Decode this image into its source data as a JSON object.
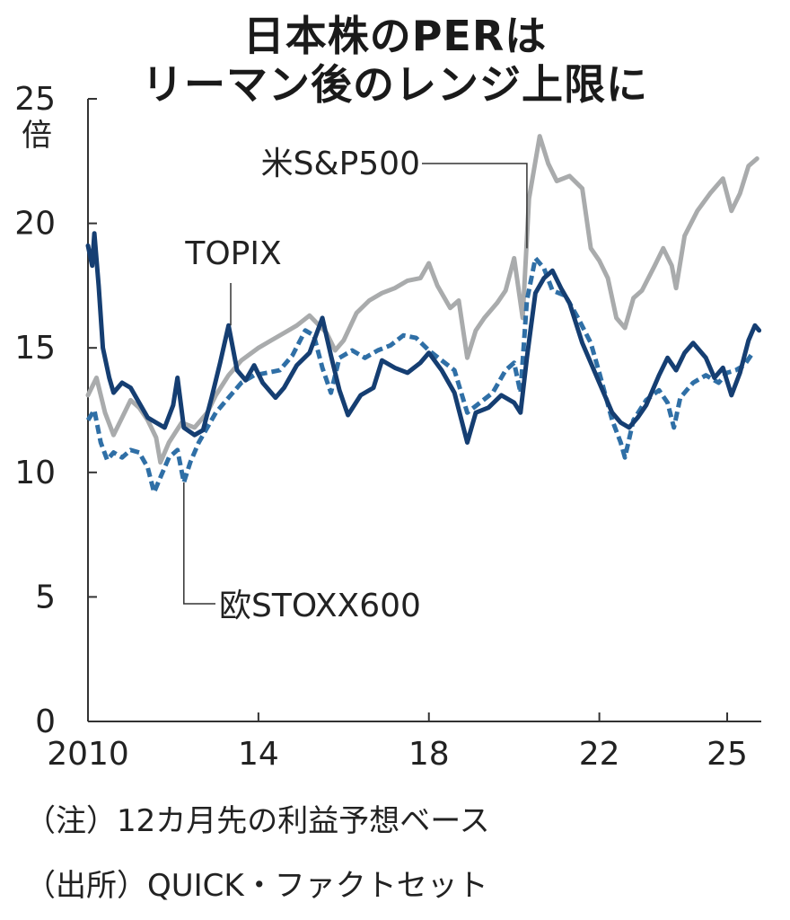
{
  "title": [
    "日本株のPERは",
    "リーマン後のレンジ上限に"
  ],
  "notes": [
    "（注）12カ月先の利益予想ベース",
    "（出所）QUICK・ファクトセット"
  ],
  "chart_data": {
    "type": "line",
    "title": "日本株のPERはリーマン後のレンジ上限に",
    "ylabel": "倍",
    "xlabel": "",
    "ylim": [
      0,
      25
    ],
    "xlim": [
      2010,
      2025.8
    ],
    "yticks": [
      0,
      5,
      10,
      15,
      20,
      25
    ],
    "ytick_labels": [
      "0",
      "5",
      "10",
      "15",
      "20",
      "25"
    ],
    "xticks": [
      2010,
      2014,
      2018,
      2022,
      2025
    ],
    "xtick_labels": [
      "2010",
      "14",
      "18",
      "22",
      "25"
    ],
    "series": [
      {
        "name": "米S&P500",
        "color": "#a9abac",
        "style": "solid",
        "points": [
          [
            2010.0,
            13.1
          ],
          [
            2010.2,
            13.8
          ],
          [
            2010.4,
            12.4
          ],
          [
            2010.6,
            11.5
          ],
          [
            2010.8,
            12.2
          ],
          [
            2011.0,
            12.9
          ],
          [
            2011.2,
            12.6
          ],
          [
            2011.4,
            12.1
          ],
          [
            2011.6,
            11.4
          ],
          [
            2011.7,
            10.4
          ],
          [
            2011.9,
            11.2
          ],
          [
            2012.2,
            12.0
          ],
          [
            2012.5,
            11.8
          ],
          [
            2012.8,
            12.4
          ],
          [
            2013.0,
            13.1
          ],
          [
            2013.3,
            13.9
          ],
          [
            2013.6,
            14.5
          ],
          [
            2014.0,
            15.0
          ],
          [
            2014.3,
            15.3
          ],
          [
            2014.6,
            15.6
          ],
          [
            2014.9,
            15.9
          ],
          [
            2015.2,
            16.3
          ],
          [
            2015.6,
            15.6
          ],
          [
            2015.8,
            14.9
          ],
          [
            2016.0,
            15.3
          ],
          [
            2016.3,
            16.4
          ],
          [
            2016.6,
            16.9
          ],
          [
            2016.9,
            17.2
          ],
          [
            2017.2,
            17.4
          ],
          [
            2017.5,
            17.7
          ],
          [
            2017.8,
            17.8
          ],
          [
            2018.0,
            18.4
          ],
          [
            2018.2,
            17.5
          ],
          [
            2018.5,
            16.6
          ],
          [
            2018.7,
            16.9
          ],
          [
            2018.9,
            14.6
          ],
          [
            2019.1,
            15.7
          ],
          [
            2019.3,
            16.2
          ],
          [
            2019.6,
            16.8
          ],
          [
            2019.8,
            17.3
          ],
          [
            2020.0,
            18.6
          ],
          [
            2020.2,
            16.2
          ],
          [
            2020.35,
            21.0
          ],
          [
            2020.6,
            23.5
          ],
          [
            2020.8,
            22.4
          ],
          [
            2021.0,
            21.7
          ],
          [
            2021.3,
            21.9
          ],
          [
            2021.6,
            21.4
          ],
          [
            2021.8,
            19.0
          ],
          [
            2022.0,
            18.5
          ],
          [
            2022.2,
            17.8
          ],
          [
            2022.4,
            16.2
          ],
          [
            2022.6,
            15.8
          ],
          [
            2022.8,
            17.0
          ],
          [
            2023.0,
            17.3
          ],
          [
            2023.3,
            18.3
          ],
          [
            2023.5,
            19.0
          ],
          [
            2023.7,
            18.3
          ],
          [
            2023.8,
            17.4
          ],
          [
            2024.0,
            19.5
          ],
          [
            2024.3,
            20.5
          ],
          [
            2024.6,
            21.2
          ],
          [
            2024.9,
            21.8
          ],
          [
            2025.1,
            20.5
          ],
          [
            2025.3,
            21.2
          ],
          [
            2025.5,
            22.3
          ],
          [
            2025.7,
            22.6
          ]
        ]
      },
      {
        "name": "欧STOXX600",
        "color": "#2f6fa6",
        "style": "dashed",
        "points": [
          [
            2010.0,
            12.1
          ],
          [
            2010.15,
            12.5
          ],
          [
            2010.3,
            11.2
          ],
          [
            2010.45,
            10.5
          ],
          [
            2010.6,
            10.8
          ],
          [
            2010.8,
            10.6
          ],
          [
            2011.0,
            10.9
          ],
          [
            2011.2,
            10.8
          ],
          [
            2011.4,
            10.2
          ],
          [
            2011.55,
            9.2
          ],
          [
            2011.7,
            9.8
          ],
          [
            2011.9,
            10.6
          ],
          [
            2012.1,
            10.9
          ],
          [
            2012.25,
            9.6
          ],
          [
            2012.4,
            10.4
          ],
          [
            2012.6,
            11.2
          ],
          [
            2012.8,
            11.8
          ],
          [
            2013.0,
            12.4
          ],
          [
            2013.3,
            13.0
          ],
          [
            2013.6,
            13.6
          ],
          [
            2013.9,
            13.9
          ],
          [
            2014.2,
            14.0
          ],
          [
            2014.5,
            14.1
          ],
          [
            2014.8,
            14.7
          ],
          [
            2015.1,
            15.7
          ],
          [
            2015.3,
            15.5
          ],
          [
            2015.5,
            14.2
          ],
          [
            2015.7,
            13.2
          ],
          [
            2015.9,
            14.6
          ],
          [
            2016.2,
            14.9
          ],
          [
            2016.5,
            14.6
          ],
          [
            2016.8,
            14.9
          ],
          [
            2017.1,
            15.1
          ],
          [
            2017.4,
            15.5
          ],
          [
            2017.7,
            15.4
          ],
          [
            2018.0,
            14.9
          ],
          [
            2018.3,
            14.5
          ],
          [
            2018.6,
            14.1
          ],
          [
            2018.9,
            12.4
          ],
          [
            2019.2,
            12.8
          ],
          [
            2019.5,
            13.2
          ],
          [
            2019.8,
            14.1
          ],
          [
            2020.0,
            14.4
          ],
          [
            2020.15,
            13.2
          ],
          [
            2020.3,
            16.9
          ],
          [
            2020.5,
            18.6
          ],
          [
            2020.7,
            18.2
          ],
          [
            2020.9,
            17.3
          ],
          [
            2021.2,
            17.1
          ],
          [
            2021.5,
            16.2
          ],
          [
            2021.8,
            15.2
          ],
          [
            2022.0,
            14.0
          ],
          [
            2022.3,
            12.1
          ],
          [
            2022.5,
            11.2
          ],
          [
            2022.6,
            10.6
          ],
          [
            2022.8,
            12.1
          ],
          [
            2023.1,
            12.9
          ],
          [
            2023.4,
            13.3
          ],
          [
            2023.6,
            12.8
          ],
          [
            2023.75,
            11.8
          ],
          [
            2023.9,
            13.0
          ],
          [
            2024.2,
            13.6
          ],
          [
            2024.5,
            13.9
          ],
          [
            2024.8,
            13.6
          ],
          [
            2025.0,
            14.0
          ],
          [
            2025.2,
            14.1
          ],
          [
            2025.4,
            14.3
          ],
          [
            2025.6,
            14.8
          ]
        ]
      },
      {
        "name": "TOPIX",
        "color": "#153e72",
        "style": "solid",
        "points": [
          [
            2010.0,
            19.1
          ],
          [
            2010.1,
            18.3
          ],
          [
            2010.15,
            19.6
          ],
          [
            2010.25,
            17.5
          ],
          [
            2010.35,
            15.0
          ],
          [
            2010.5,
            13.8
          ],
          [
            2010.6,
            13.2
          ],
          [
            2010.8,
            13.6
          ],
          [
            2011.0,
            13.4
          ],
          [
            2011.2,
            12.8
          ],
          [
            2011.4,
            12.2
          ],
          [
            2011.6,
            12.0
          ],
          [
            2011.8,
            11.8
          ],
          [
            2012.0,
            12.7
          ],
          [
            2012.1,
            13.8
          ],
          [
            2012.25,
            11.8
          ],
          [
            2012.5,
            11.5
          ],
          [
            2012.7,
            11.7
          ],
          [
            2012.9,
            13.0
          ],
          [
            2013.1,
            14.4
          ],
          [
            2013.3,
            15.9
          ],
          [
            2013.5,
            14.1
          ],
          [
            2013.7,
            13.7
          ],
          [
            2013.9,
            14.3
          ],
          [
            2014.1,
            13.6
          ],
          [
            2014.4,
            13.0
          ],
          [
            2014.6,
            13.4
          ],
          [
            2014.9,
            14.3
          ],
          [
            2015.2,
            14.8
          ],
          [
            2015.5,
            16.2
          ],
          [
            2015.7,
            14.7
          ],
          [
            2015.9,
            13.3
          ],
          [
            2016.1,
            12.3
          ],
          [
            2016.4,
            13.1
          ],
          [
            2016.7,
            13.4
          ],
          [
            2016.9,
            14.5
          ],
          [
            2017.2,
            14.2
          ],
          [
            2017.5,
            14.0
          ],
          [
            2017.8,
            14.4
          ],
          [
            2018.0,
            14.8
          ],
          [
            2018.3,
            14.1
          ],
          [
            2018.6,
            13.2
          ],
          [
            2018.9,
            11.2
          ],
          [
            2019.1,
            12.4
          ],
          [
            2019.4,
            12.6
          ],
          [
            2019.7,
            13.1
          ],
          [
            2020.0,
            12.8
          ],
          [
            2020.15,
            12.4
          ],
          [
            2020.3,
            14.6
          ],
          [
            2020.5,
            17.2
          ],
          [
            2020.7,
            17.8
          ],
          [
            2020.9,
            18.1
          ],
          [
            2021.1,
            17.4
          ],
          [
            2021.3,
            16.8
          ],
          [
            2021.6,
            15.2
          ],
          [
            2021.8,
            14.4
          ],
          [
            2022.0,
            13.6
          ],
          [
            2022.3,
            12.4
          ],
          [
            2022.5,
            12.0
          ],
          [
            2022.7,
            11.8
          ],
          [
            2022.9,
            12.2
          ],
          [
            2023.1,
            12.7
          ],
          [
            2023.4,
            13.9
          ],
          [
            2023.6,
            14.6
          ],
          [
            2023.8,
            14.1
          ],
          [
            2024.0,
            14.8
          ],
          [
            2024.2,
            15.2
          ],
          [
            2024.5,
            14.6
          ],
          [
            2024.7,
            13.8
          ],
          [
            2024.9,
            14.2
          ],
          [
            2025.1,
            13.1
          ],
          [
            2025.3,
            14.0
          ],
          [
            2025.5,
            15.3
          ],
          [
            2025.65,
            15.9
          ],
          [
            2025.75,
            15.7
          ]
        ]
      }
    ],
    "annotations": [
      {
        "text": "米S&P500",
        "series": "米S&P500"
      },
      {
        "text": "TOPIX",
        "series": "TOPIX"
      },
      {
        "text": "欧STOXX600",
        "series": "欧STOXX600"
      }
    ]
  }
}
